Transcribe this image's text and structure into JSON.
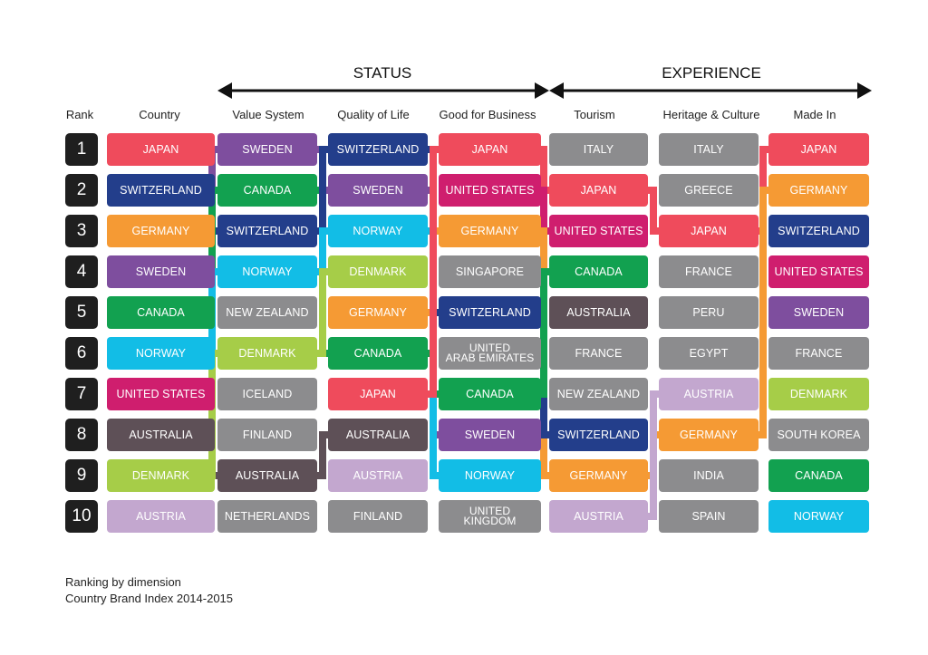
{
  "groups": {
    "status": "STATUS",
    "experience": "EXPERIENCE"
  },
  "headers": {
    "rank": "Rank",
    "country": "Country",
    "value_system": "Value System",
    "quality_of_life": "Quality of Life",
    "good_for_business": "Good for Business",
    "tourism": "Tourism",
    "heritage_culture": "Heritage & Culture",
    "made_in": "Made In"
  },
  "ranks": [
    "1",
    "2",
    "3",
    "4",
    "5",
    "6",
    "7",
    "8",
    "9",
    "10"
  ],
  "colors": {
    "JAPAN": "#ef4b5c",
    "SWEDEN": "#7e4e9e",
    "SWITZERLAND": "#233e8b",
    "ITALY": "#8c8c8e",
    "CANADA": "#12a150",
    "UNITED STATES": "#cf1e6e",
    "GREECE": "#8c8c8e",
    "GERMANY": "#f59a34",
    "NORWAY": "#12bde6",
    "DENMARK": "#a6cd48",
    "SINGAPORE": "#8c8c8e",
    "FRANCE": "#8c8c8e",
    "NEW ZEALAND": "#8c8c8e",
    "AUSTRALIA": "#5e5057",
    "PERU": "#8c8c8e",
    "EGYPT": "#8c8c8e",
    "ICELAND": "#8c8c8e",
    "UNITED ARAB EMIRATES": "#8c8c8e",
    "FINLAND": "#8c8c8e",
    "SOUTH KOREA": "#8c8c8e",
    "INDIA": "#8c8c8e",
    "AUSTRIA": "#c3a7cf",
    "NETHERLANDS": "#8c8c8e",
    "UNITED KINGDOM": "#8c8c8e",
    "SPAIN": "#8c8c8e"
  },
  "columns": [
    {
      "key": "country",
      "items": [
        "JAPAN",
        "SWITZERLAND",
        "GERMANY",
        "SWEDEN",
        "CANADA",
        "NORWAY",
        "UNITED STATES",
        "AUSTRALIA",
        "DENMARK",
        "AUSTRIA"
      ]
    },
    {
      "key": "value_system",
      "items": [
        "SWEDEN",
        "CANADA",
        "SWITZERLAND",
        "NORWAY",
        "NEW ZEALAND",
        "DENMARK",
        "ICELAND",
        "FINLAND",
        "AUSTRALIA",
        "NETHERLANDS"
      ]
    },
    {
      "key": "quality_of_life",
      "items": [
        "SWITZERLAND",
        "SWEDEN",
        "NORWAY",
        "DENMARK",
        "GERMANY",
        "CANADA",
        "JAPAN",
        "AUSTRALIA",
        "AUSTRIA",
        "FINLAND"
      ]
    },
    {
      "key": "good_for_business",
      "items": [
        "JAPAN",
        "UNITED STATES",
        "GERMANY",
        "SINGAPORE",
        "SWITZERLAND",
        "UNITED ARAB EMIRATES",
        "CANADA",
        "SWEDEN",
        "NORWAY",
        "UNITED KINGDOM"
      ]
    },
    {
      "key": "tourism",
      "items": [
        "ITALY",
        "JAPAN",
        "UNITED STATES",
        "CANADA",
        "AUSTRALIA",
        "FRANCE",
        "NEW ZEALAND",
        "SWITZERLAND",
        "GERMANY",
        "AUSTRIA"
      ]
    },
    {
      "key": "heritage_culture",
      "items": [
        "ITALY",
        "GREECE",
        "JAPAN",
        "FRANCE",
        "PERU",
        "EGYPT",
        "AUSTRIA",
        "GERMANY",
        "INDIA",
        "SPAIN"
      ]
    },
    {
      "key": "made_in",
      "items": [
        "JAPAN",
        "GERMANY",
        "SWITZERLAND",
        "UNITED STATES",
        "SWEDEN",
        "FRANCE",
        "DENMARK",
        "SOUTH KOREA",
        "CANADA",
        "NORWAY"
      ]
    }
  ],
  "labels": {
    "UNITED ARAB EMIRATES": "UNITED\nARAB EMIRATES",
    "UNITED KINGDOM": "UNITED\nKINGDOM",
    "SPAIN": "SPAIN"
  },
  "footer": {
    "line1": "Ranking by dimension",
    "line2": "Country Brand Index 2014-2015"
  }
}
